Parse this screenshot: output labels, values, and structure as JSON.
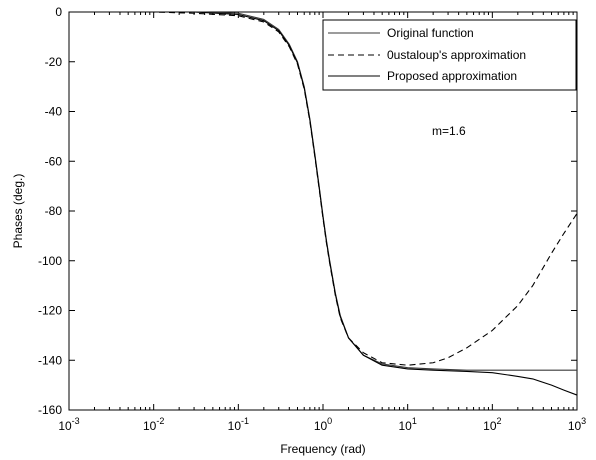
{
  "chart_data": {
    "type": "line",
    "title": "",
    "xlabel": "Frequency (rad)",
    "ylabel": "Phases (deg.)",
    "x_scale": "log",
    "xlim": [
      0.001,
      1000
    ],
    "ylim": [
      -160,
      0
    ],
    "x_ticks": [
      {
        "value": 0.001,
        "base": "10",
        "exp": "-3"
      },
      {
        "value": 0.01,
        "base": "10",
        "exp": "-2"
      },
      {
        "value": 0.1,
        "base": "10",
        "exp": "-1"
      },
      {
        "value": 1,
        "base": "10",
        "exp": "0"
      },
      {
        "value": 10,
        "base": "10",
        "exp": "1"
      },
      {
        "value": 100,
        "base": "10",
        "exp": "2"
      },
      {
        "value": 1000,
        "base": "10",
        "exp": "3"
      }
    ],
    "y_ticks": [
      0,
      -20,
      -40,
      -60,
      -80,
      -100,
      -120,
      -140,
      -160
    ],
    "grid": false,
    "legend_position": "top-right",
    "annotation": "m=1.6",
    "series": [
      {
        "name": "Original function",
        "style": "solid",
        "color": "#3a3a3a",
        "x": [
          0.001,
          0.01,
          0.03,
          0.1,
          0.2,
          0.3,
          0.4,
          0.5,
          0.6,
          0.7,
          0.8,
          0.9,
          1.0,
          1.1,
          1.2,
          1.4,
          1.6,
          2.0,
          3.0,
          5.0,
          10,
          20,
          50,
          100,
          300,
          1000
        ],
        "y": [
          0,
          0,
          0,
          -0.5,
          -3,
          -7,
          -13,
          -20,
          -30,
          -43,
          -57,
          -70,
          -82,
          -92,
          -100,
          -113,
          -122,
          -131,
          -138,
          -141.5,
          -143,
          -143.5,
          -144,
          -144,
          -144,
          -144
        ]
      },
      {
        "name": "0ustaloup's approximation",
        "style": "dashed",
        "color": "#000000",
        "x": [
          0.001,
          0.01,
          0.03,
          0.1,
          0.2,
          0.3,
          0.4,
          0.5,
          0.6,
          0.7,
          0.8,
          0.9,
          1.0,
          1.1,
          1.2,
          1.4,
          1.6,
          2.0,
          3.0,
          5.0,
          10,
          20,
          30,
          50,
          100,
          200,
          300,
          500,
          700,
          1000
        ],
        "y": [
          0,
          0,
          -0.5,
          -1.5,
          -4,
          -8,
          -14,
          -21,
          -31,
          -44,
          -58,
          -71,
          -83,
          -93,
          -101,
          -114,
          -123,
          -131,
          -137,
          -141,
          -142,
          -141,
          -139,
          -135,
          -128,
          -118,
          -110,
          -97,
          -89,
          -81
        ]
      },
      {
        "name": "Proposed approximation",
        "style": "solid",
        "color": "#000000",
        "x": [
          0.001,
          0.01,
          0.03,
          0.1,
          0.2,
          0.3,
          0.4,
          0.5,
          0.6,
          0.7,
          0.8,
          0.9,
          1.0,
          1.1,
          1.2,
          1.4,
          1.6,
          2.0,
          3.0,
          5.0,
          10,
          20,
          50,
          100,
          200,
          300,
          500,
          700,
          1000
        ],
        "y": [
          0,
          0,
          0,
          -1,
          -3.5,
          -7.5,
          -13.5,
          -20.5,
          -30.5,
          -43.5,
          -57.5,
          -70.5,
          -82.5,
          -92.5,
          -100.5,
          -113.5,
          -122.5,
          -131,
          -138,
          -142,
          -143.5,
          -144,
          -144.5,
          -145,
          -146.5,
          -147.5,
          -150,
          -152,
          -154
        ]
      }
    ]
  }
}
